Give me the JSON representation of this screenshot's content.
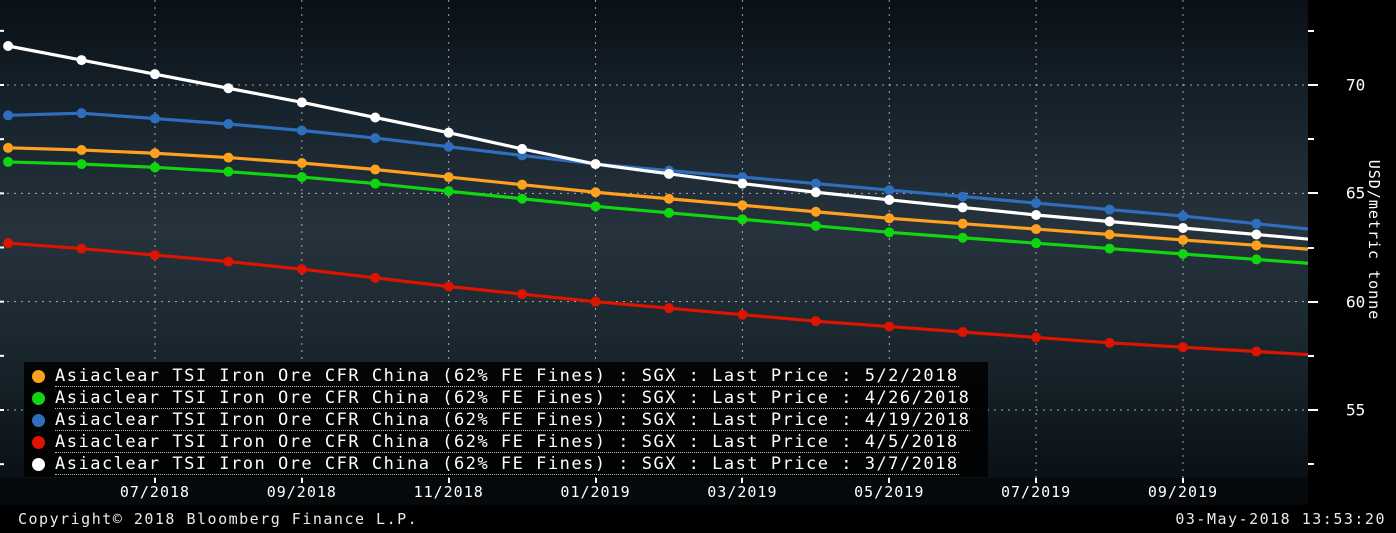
{
  "chart_data": {
    "type": "line",
    "title": "",
    "ylabel": "USD/metric tonne",
    "grid": true,
    "legend_position": "bottom-left",
    "x_categories": [
      "05/2018",
      "06/2018",
      "07/2018",
      "08/2018",
      "09/2018",
      "10/2018",
      "11/2018",
      "12/2018",
      "01/2019",
      "02/2019",
      "03/2019",
      "04/2019",
      "05/2019",
      "06/2019",
      "07/2019",
      "08/2019",
      "09/2019",
      "10/2019",
      "11/2019"
    ],
    "x_axis_labels": [
      "07/2018",
      "09/2018",
      "11/2018",
      "01/2019",
      "03/2019",
      "05/2019",
      "07/2019",
      "09/2019"
    ],
    "y_ticks": [
      70,
      65,
      60,
      55
    ],
    "y_minor_ticks": [
      72.5,
      67.5,
      62.5,
      57.5,
      52.5
    ],
    "ylim": [
      52,
      73
    ],
    "series": [
      {
        "name": "Asiaclear TSI Iron Ore CFR China (62% FE Fines) : SGX : Last Price : 5/2/2018",
        "color": "#ffa01e",
        "values": [
          67.1,
          67.0,
          66.85,
          66.65,
          66.4,
          66.1,
          65.75,
          65.4,
          65.05,
          64.75,
          64.45,
          64.15,
          63.85,
          63.6,
          63.35,
          63.1,
          62.85,
          62.6,
          62.35
        ]
      },
      {
        "name": "Asiaclear TSI Iron Ore CFR China (62% FE Fines) : SGX : Last Price : 4/26/2018",
        "color": "#0fd60f",
        "values": [
          66.45,
          66.35,
          66.2,
          66.0,
          65.75,
          65.45,
          65.1,
          64.75,
          64.4,
          64.1,
          63.8,
          63.5,
          63.2,
          62.95,
          62.7,
          62.45,
          62.2,
          61.95,
          61.7
        ]
      },
      {
        "name": "Asiaclear TSI Iron Ore CFR China (62% FE Fines) : SGX : Last Price : 4/19/2018",
        "color": "#2f6ebc",
        "values": [
          68.6,
          68.7,
          68.45,
          68.2,
          67.9,
          67.55,
          67.15,
          66.75,
          66.35,
          66.05,
          65.75,
          65.45,
          65.15,
          64.85,
          64.55,
          64.25,
          63.95,
          63.6,
          63.25
        ]
      },
      {
        "name": "Asiaclear TSI Iron Ore CFR China (62% FE Fines) : SGX : Last Price : 4/5/2018",
        "color": "#dc1400",
        "values": [
          62.7,
          62.45,
          62.15,
          61.85,
          61.5,
          61.1,
          60.7,
          60.35,
          60.0,
          59.7,
          59.4,
          59.1,
          58.85,
          58.6,
          58.35,
          58.1,
          57.9,
          57.7,
          57.5
        ]
      },
      {
        "name": "Asiaclear TSI Iron Ore CFR China (62% FE Fines) : SGX : Last Price : 3/7/2018",
        "color": "#ffffff",
        "values": [
          71.8,
          71.15,
          70.5,
          69.85,
          69.2,
          68.5,
          67.8,
          67.05,
          66.35,
          65.9,
          65.45,
          65.05,
          64.7,
          64.35,
          64.0,
          63.7,
          63.4,
          63.1,
          62.8
        ]
      }
    ]
  },
  "footer": {
    "copyright": "Copyright© 2018 Bloomberg Finance L.P.",
    "timestamp": "03-May-2018 13:53:20"
  }
}
